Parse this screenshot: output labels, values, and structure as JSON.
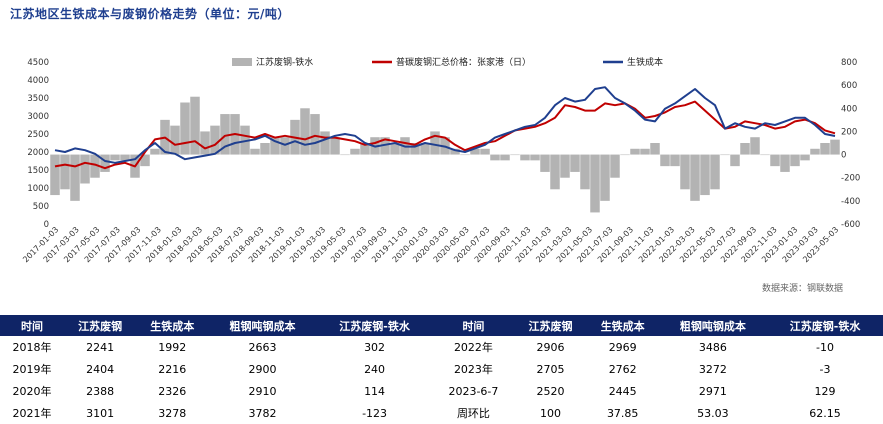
{
  "title": "江苏地区生铁成本与废钢价格走势（单位：元/吨）",
  "source": "数据来源：钢联数据",
  "chart_data": {
    "type": "line",
    "legend": [
      "江苏废钢-铁水",
      "普碳废钢汇总价格：张家港（日）",
      "生铁成本"
    ],
    "colors": {
      "spread": "#b3b3b3",
      "scrap": "#c00000",
      "iron": "#1f3f8f"
    },
    "x_ticks": [
      "2017-01-03",
      "2017-03-03",
      "2017-05-03",
      "2017-07-03",
      "2017-09-03",
      "2017-11-03",
      "2018-01-03",
      "2018-03-03",
      "2018-05-03",
      "2018-07-03",
      "2018-09-03",
      "2018-11-03",
      "2019-01-03",
      "2019-03-03",
      "2019-05-03",
      "2019-07-03",
      "2019-09-03",
      "2019-11-03",
      "2020-01-03",
      "2020-03-03",
      "2020-05-03",
      "2020-07-03",
      "2020-09-03",
      "2020-11-03",
      "2021-01-03",
      "2021-03-03",
      "2021-05-03",
      "2021-07-03",
      "2021-09-03",
      "2021-11-03",
      "2022-01-03",
      "2022-03-03",
      "2022-05-03",
      "2022-07-03",
      "2022-09-03",
      "2022-11-03",
      "2023-01-03",
      "2023-03-03",
      "2023-05-03"
    ],
    "y_left": {
      "min": 0,
      "max": 4500,
      "ticks": [
        0,
        500,
        1000,
        1500,
        2000,
        2500,
        3000,
        3500,
        4000,
        4500
      ]
    },
    "y_right": {
      "min": -600,
      "max": 800,
      "ticks": [
        -600,
        -400,
        -200,
        0,
        200,
        400,
        600,
        800
      ]
    },
    "series": [
      {
        "name": "普碳废钢汇总价格：张家港（日）",
        "axis": "left",
        "points": [
          [
            0,
            1600
          ],
          [
            1,
            1650
          ],
          [
            2,
            1600
          ],
          [
            3,
            1700
          ],
          [
            4,
            1650
          ],
          [
            5,
            1550
          ],
          [
            6,
            1650
          ],
          [
            7,
            1700
          ],
          [
            8,
            1600
          ],
          [
            9,
            2000
          ],
          [
            10,
            2350
          ],
          [
            11,
            2400
          ],
          [
            12,
            2200
          ],
          [
            13,
            2250
          ],
          [
            14,
            2300
          ],
          [
            15,
            2100
          ],
          [
            16,
            2200
          ],
          [
            17,
            2450
          ],
          [
            18,
            2500
          ],
          [
            19,
            2450
          ],
          [
            20,
            2400
          ],
          [
            21,
            2500
          ],
          [
            22,
            2400
          ],
          [
            23,
            2450
          ],
          [
            24,
            2400
          ],
          [
            25,
            2350
          ],
          [
            26,
            2450
          ],
          [
            27,
            2400
          ],
          [
            28,
            2400
          ],
          [
            29,
            2350
          ],
          [
            30,
            2300
          ],
          [
            31,
            2200
          ],
          [
            32,
            2250
          ],
          [
            33,
            2350
          ],
          [
            34,
            2300
          ],
          [
            35,
            2250
          ],
          [
            36,
            2200
          ],
          [
            37,
            2350
          ],
          [
            38,
            2450
          ],
          [
            39,
            2400
          ],
          [
            40,
            2200
          ],
          [
            41,
            2050
          ],
          [
            42,
            2150
          ],
          [
            43,
            2250
          ],
          [
            44,
            2300
          ],
          [
            45,
            2450
          ],
          [
            46,
            2600
          ],
          [
            47,
            2650
          ],
          [
            48,
            2700
          ],
          [
            49,
            2800
          ],
          [
            50,
            2950
          ],
          [
            51,
            3300
          ],
          [
            52,
            3250
          ],
          [
            53,
            3150
          ],
          [
            54,
            3150
          ],
          [
            55,
            3350
          ],
          [
            56,
            3300
          ],
          [
            57,
            3350
          ],
          [
            58,
            3200
          ],
          [
            59,
            2950
          ],
          [
            60,
            3000
          ],
          [
            61,
            3100
          ],
          [
            62,
            3250
          ],
          [
            63,
            3300
          ],
          [
            64,
            3400
          ],
          [
            65,
            3150
          ],
          [
            66,
            2900
          ],
          [
            67,
            2650
          ],
          [
            68,
            2700
          ],
          [
            69,
            2850
          ],
          [
            70,
            2800
          ],
          [
            71,
            2750
          ],
          [
            72,
            2650
          ],
          [
            73,
            2700
          ],
          [
            74,
            2850
          ],
          [
            75,
            2900
          ],
          [
            76,
            2800
          ],
          [
            77,
            2600
          ],
          [
            78,
            2520
          ]
        ]
      },
      {
        "name": "生铁成本",
        "axis": "left",
        "points": [
          [
            0,
            2050
          ],
          [
            1,
            2000
          ],
          [
            2,
            2100
          ],
          [
            3,
            2050
          ],
          [
            4,
            1950
          ],
          [
            5,
            1750
          ],
          [
            6,
            1700
          ],
          [
            7,
            1750
          ],
          [
            8,
            1800
          ],
          [
            9,
            2050
          ],
          [
            10,
            2250
          ],
          [
            11,
            2000
          ],
          [
            12,
            1950
          ],
          [
            13,
            1800
          ],
          [
            14,
            1850
          ],
          [
            15,
            1900
          ],
          [
            16,
            1950
          ],
          [
            17,
            2150
          ],
          [
            18,
            2250
          ],
          [
            19,
            2300
          ],
          [
            20,
            2350
          ],
          [
            21,
            2450
          ],
          [
            22,
            2300
          ],
          [
            23,
            2200
          ],
          [
            24,
            2300
          ],
          [
            25,
            2200
          ],
          [
            26,
            2250
          ],
          [
            27,
            2350
          ],
          [
            28,
            2450
          ],
          [
            29,
            2500
          ],
          [
            30,
            2450
          ],
          [
            31,
            2250
          ],
          [
            32,
            2150
          ],
          [
            33,
            2200
          ],
          [
            34,
            2250
          ],
          [
            35,
            2150
          ],
          [
            36,
            2150
          ],
          [
            37,
            2250
          ],
          [
            38,
            2200
          ],
          [
            39,
            2150
          ],
          [
            40,
            2050
          ],
          [
            41,
            2000
          ],
          [
            42,
            2100
          ],
          [
            43,
            2200
          ],
          [
            44,
            2400
          ],
          [
            45,
            2500
          ],
          [
            46,
            2600
          ],
          [
            47,
            2700
          ],
          [
            48,
            2750
          ],
          [
            49,
            2950
          ],
          [
            50,
            3300
          ],
          [
            51,
            3500
          ],
          [
            52,
            3400
          ],
          [
            53,
            3450
          ],
          [
            54,
            3750
          ],
          [
            55,
            3800
          ],
          [
            56,
            3500
          ],
          [
            57,
            3350
          ],
          [
            58,
            3150
          ],
          [
            59,
            2900
          ],
          [
            60,
            2850
          ],
          [
            61,
            3200
          ],
          [
            62,
            3350
          ],
          [
            63,
            3550
          ],
          [
            64,
            3750
          ],
          [
            65,
            3500
          ],
          [
            66,
            3300
          ],
          [
            67,
            2650
          ],
          [
            68,
            2800
          ],
          [
            69,
            2700
          ],
          [
            70,
            2650
          ],
          [
            71,
            2800
          ],
          [
            72,
            2750
          ],
          [
            73,
            2850
          ],
          [
            74,
            2950
          ],
          [
            75,
            2950
          ],
          [
            76,
            2750
          ],
          [
            77,
            2500
          ],
          [
            78,
            2445
          ]
        ]
      },
      {
        "name": "江苏废钢-铁水",
        "axis": "right",
        "points": [
          [
            0,
            -350
          ],
          [
            1,
            -300
          ],
          [
            2,
            -400
          ],
          [
            3,
            -250
          ],
          [
            4,
            -200
          ],
          [
            5,
            -150
          ],
          [
            6,
            -50
          ],
          [
            7,
            -50
          ],
          [
            8,
            -200
          ],
          [
            9,
            -100
          ],
          [
            10,
            50
          ],
          [
            11,
            300
          ],
          [
            12,
            250
          ],
          [
            13,
            450
          ],
          [
            14,
            500
          ],
          [
            15,
            200
          ],
          [
            16,
            250
          ],
          [
            17,
            350
          ],
          [
            18,
            350
          ],
          [
            19,
            250
          ],
          [
            20,
            50
          ],
          [
            21,
            100
          ],
          [
            22,
            150
          ],
          [
            23,
            150
          ],
          [
            24,
            300
          ],
          [
            25,
            400
          ],
          [
            26,
            350
          ],
          [
            27,
            200
          ],
          [
            28,
            150
          ],
          [
            29,
            0
          ],
          [
            30,
            50
          ],
          [
            31,
            100
          ],
          [
            32,
            150
          ],
          [
            33,
            150
          ],
          [
            34,
            100
          ],
          [
            35,
            150
          ],
          [
            36,
            100
          ],
          [
            37,
            100
          ],
          [
            38,
            200
          ],
          [
            39,
            150
          ],
          [
            40,
            50
          ],
          [
            41,
            0
          ],
          [
            42,
            50
          ],
          [
            43,
            50
          ],
          [
            44,
            -50
          ],
          [
            45,
            -50
          ],
          [
            46,
            0
          ],
          [
            47,
            -50
          ],
          [
            48,
            -50
          ],
          [
            49,
            -150
          ],
          [
            50,
            -300
          ],
          [
            51,
            -200
          ],
          [
            52,
            -150
          ],
          [
            53,
            -300
          ],
          [
            54,
            -500
          ],
          [
            55,
            -400
          ],
          [
            56,
            -200
          ],
          [
            57,
            0
          ],
          [
            58,
            50
          ],
          [
            59,
            50
          ],
          [
            60,
            100
          ],
          [
            61,
            -100
          ],
          [
            62,
            -100
          ],
          [
            63,
            -300
          ],
          [
            64,
            -400
          ],
          [
            65,
            -350
          ],
          [
            66,
            -300
          ],
          [
            67,
            0
          ],
          [
            68,
            -100
          ],
          [
            69,
            100
          ],
          [
            70,
            150
          ],
          [
            71,
            0
          ],
          [
            72,
            -100
          ],
          [
            73,
            -150
          ],
          [
            74,
            -100
          ],
          [
            75,
            -50
          ],
          [
            76,
            50
          ],
          [
            77,
            100
          ],
          [
            78,
            129
          ]
        ]
      }
    ]
  },
  "table": {
    "headers": [
      "时间",
      "江苏废钢",
      "生铁成本",
      "粗钢吨钢成本",
      "江苏废钢-铁水",
      "时间",
      "江苏废钢",
      "生铁成本",
      "粗钢吨钢成本",
      "江苏废钢-铁水"
    ],
    "rows": [
      [
        "2018年",
        "2241",
        "1992",
        "2663",
        "302",
        "2022年",
        "2906",
        "2969",
        "3486",
        "-10"
      ],
      [
        "2019年",
        "2404",
        "2216",
        "2900",
        "240",
        "2023年",
        "2705",
        "2762",
        "3272",
        "-3"
      ],
      [
        "2020年",
        "2388",
        "2326",
        "2910",
        "114",
        "2023-6-7",
        "2520",
        "2445",
        "2971",
        "129"
      ],
      [
        "2021年",
        "3101",
        "3278",
        "3782",
        "-123",
        "周环比",
        "100",
        "37.85",
        "53.03",
        "62.15"
      ]
    ]
  }
}
